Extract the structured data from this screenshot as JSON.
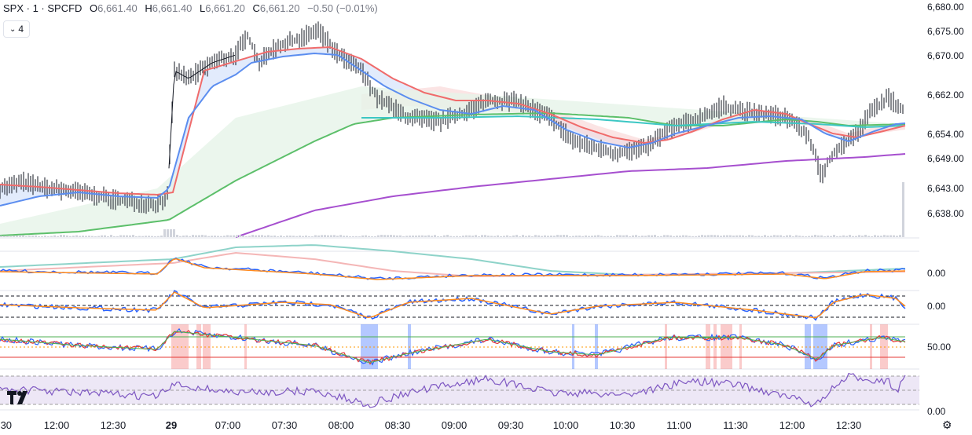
{
  "legend": {
    "symbol": "SPX · 1 · SPCFD",
    "open_key": "O",
    "open": "6,661.40",
    "high_key": "H",
    "high": "6,661.40",
    "low_key": "L",
    "low": "6,661.20",
    "close_key": "C",
    "close": "6,661.20",
    "change": "−0.50 (−0.01%)"
  },
  "collapse_button": {
    "count": "4",
    "icon": "chevron-down-icon"
  },
  "price_axis": [
    "6,680.00",
    "6,675.00",
    "6,670.00",
    "6,662.00",
    "6,654.00",
    "6,649.00",
    "6,643.00",
    "6,638.00"
  ],
  "indicator_axis": {
    "pane1": "0.00",
    "pane2": "0.00",
    "pane3": "50.00",
    "pane4": "0.00"
  },
  "time_axis": [
    {
      "t": ":30",
      "bold": false
    },
    {
      "t": "12:00",
      "bold": false
    },
    {
      "t": "12:30",
      "bold": false
    },
    {
      "t": "29",
      "bold": true
    },
    {
      "t": "07:00",
      "bold": false
    },
    {
      "t": "07:30",
      "bold": false
    },
    {
      "t": "08:00",
      "bold": false
    },
    {
      "t": "08:30",
      "bold": false
    },
    {
      "t": "09:00",
      "bold": false
    },
    {
      "t": "09:30",
      "bold": false
    },
    {
      "t": "10:00",
      "bold": false
    },
    {
      "t": "10:30",
      "bold": false
    },
    {
      "t": "11:00",
      "bold": false
    },
    {
      "t": "11:30",
      "bold": false
    },
    {
      "t": "12:00",
      "bold": false
    },
    {
      "t": "12:30",
      "bold": false
    }
  ],
  "colors": {
    "ema_fast": "#5b8def",
    "ema_slow": "#f06b6b",
    "sma_green": "#5cbf6a",
    "teal": "#3cc7c4",
    "purple": "#a64fcf",
    "bull_fill": "#dbe6fb",
    "bear_fill": "#f9d8d8"
  },
  "brand_logo": "tradingview-logo",
  "settings_icon": "gear-icon"
}
